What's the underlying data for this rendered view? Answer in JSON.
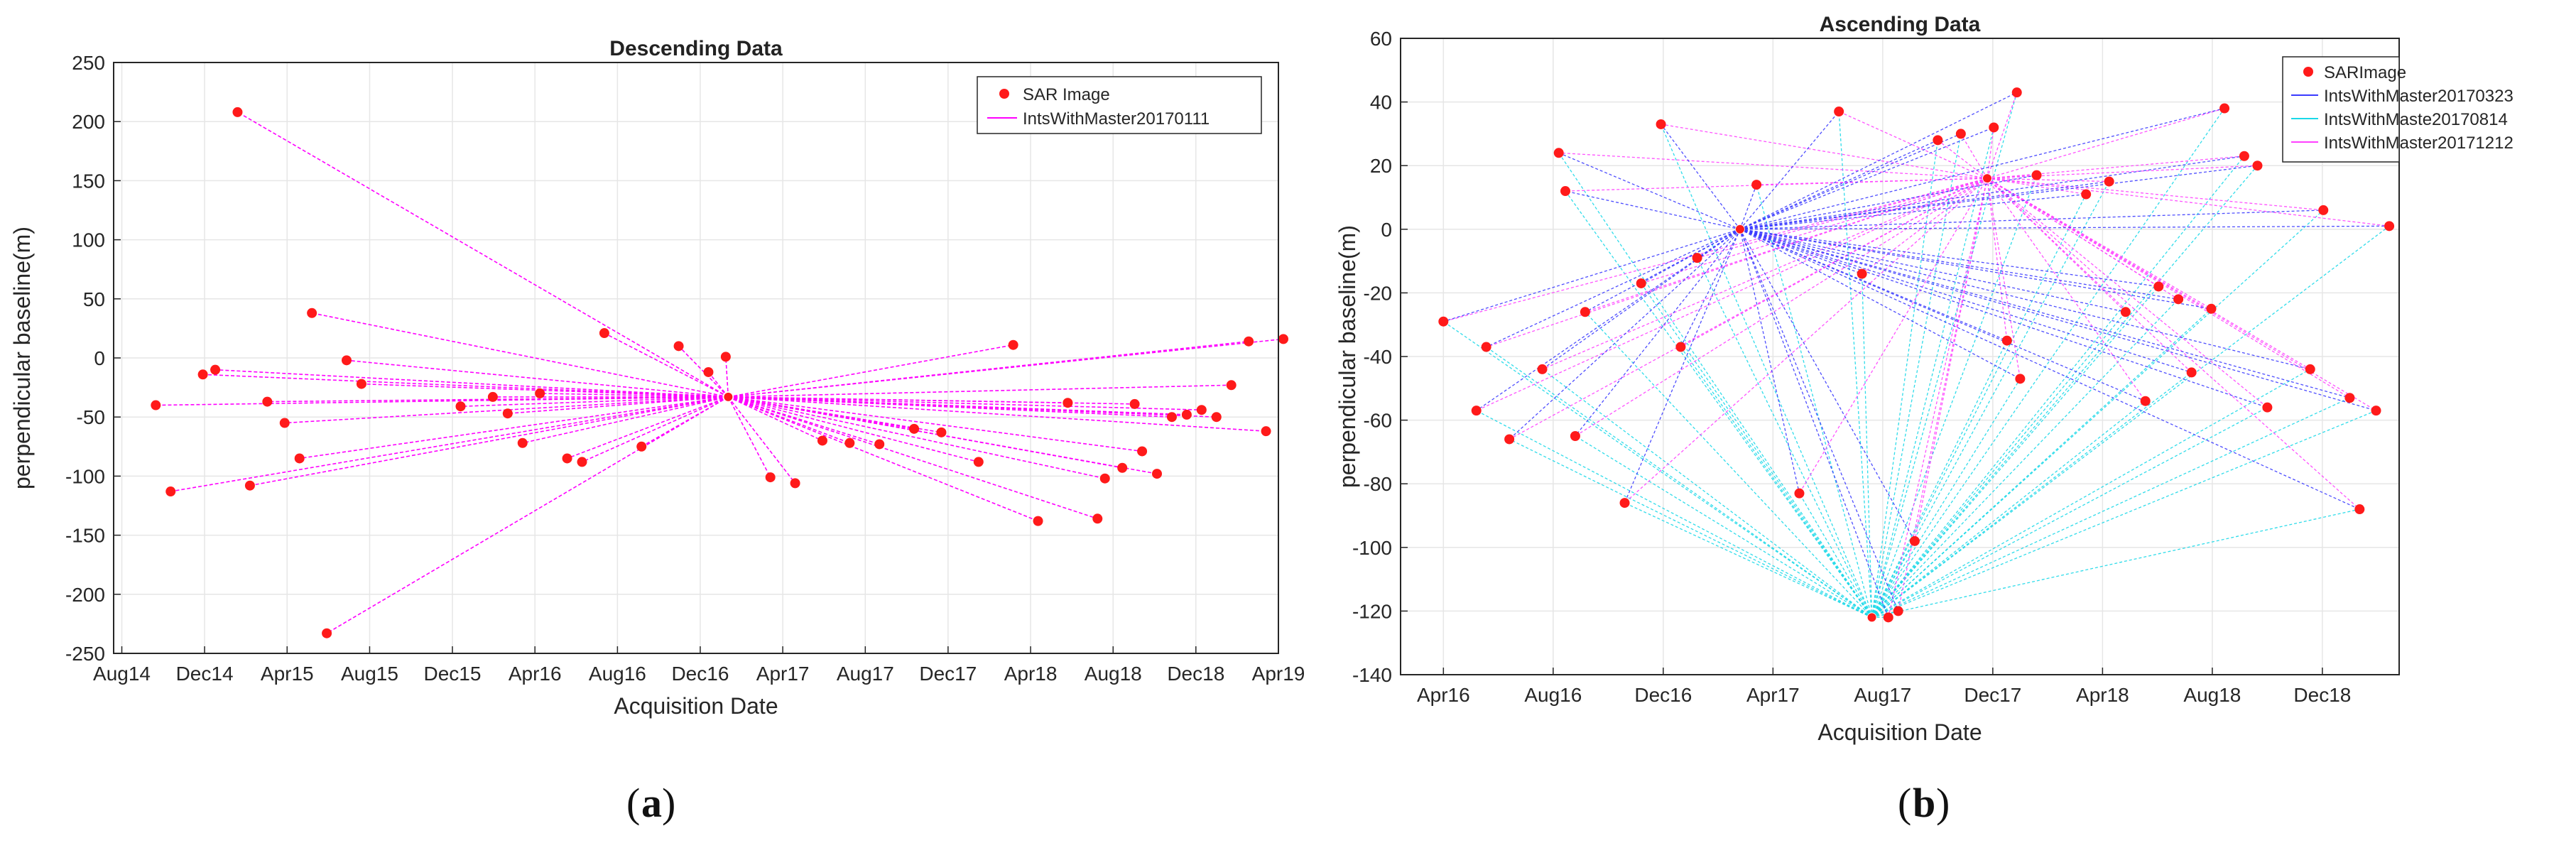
{
  "captions": {
    "a": "a",
    "b": "b"
  },
  "colors": {
    "marker": "#ff1a1a",
    "magenta": "#ff00ff",
    "blue": "#3b3bff",
    "cyan": "#1ad8e8",
    "pink": "#ff40ff"
  },
  "chart_data": [
    {
      "type": "line",
      "title": "Descending Data",
      "xlabel": "Acquisition Date",
      "ylabel": "perpendicular baseline(m)",
      "xlim": [
        2014.55,
        2019.25
      ],
      "ylim": [
        -250,
        250
      ],
      "x_ticks": [
        {
          "label": "Aug14",
          "t": 2014.583
        },
        {
          "label": "Dec14",
          "t": 2014.917
        },
        {
          "label": "Apr15",
          "t": 2015.25
        },
        {
          "label": "Aug15",
          "t": 2015.583
        },
        {
          "label": "Dec15",
          "t": 2015.917
        },
        {
          "label": "Apr16",
          "t": 2016.25
        },
        {
          "label": "Aug16",
          "t": 2016.583
        },
        {
          "label": "Dec16",
          "t": 2016.917
        },
        {
          "label": "Apr17",
          "t": 2017.25
        },
        {
          "label": "Aug17",
          "t": 2017.583
        },
        {
          "label": "Dec17",
          "t": 2017.917
        },
        {
          "label": "Apr18",
          "t": 2018.25
        },
        {
          "label": "Aug18",
          "t": 2018.583
        },
        {
          "label": "Dec18",
          "t": 2018.917
        },
        {
          "label": "Apr19",
          "t": 2019.25
        }
      ],
      "y_ticks": [
        250,
        200,
        150,
        100,
        50,
        0,
        -50,
        -100,
        -150,
        -200,
        -250
      ],
      "legend": {
        "position": "top-right",
        "entries": [
          "SAR Image",
          "IntsWithMaster20170111"
        ]
      },
      "series": [
        {
          "name": "IntsWithMaster20170111",
          "master": [
            2017.03,
            -33
          ],
          "points": [
            [
              2014.72,
              -40
            ],
            [
              2014.78,
              -113
            ],
            [
              2014.91,
              -14
            ],
            [
              2014.96,
              -10
            ],
            [
              2015.05,
              208
            ],
            [
              2015.1,
              -108
            ],
            [
              2015.17,
              -37
            ],
            [
              2015.24,
              -55
            ],
            [
              2015.3,
              -85
            ],
            [
              2015.35,
              38
            ],
            [
              2015.41,
              -233
            ],
            [
              2015.49,
              -2
            ],
            [
              2015.55,
              -22
            ],
            [
              2015.95,
              -41
            ],
            [
              2016.08,
              -33
            ],
            [
              2016.14,
              -47
            ],
            [
              2016.2,
              -72
            ],
            [
              2016.27,
              -30
            ],
            [
              2016.38,
              -85
            ],
            [
              2016.44,
              -88
            ],
            [
              2016.53,
              21
            ],
            [
              2016.68,
              -75
            ],
            [
              2016.83,
              10
            ],
            [
              2016.95,
              -12
            ],
            [
              2017.02,
              1
            ],
            [
              2017.2,
              -101
            ],
            [
              2017.3,
              -106
            ],
            [
              2017.41,
              -70
            ],
            [
              2017.52,
              -72
            ],
            [
              2017.64,
              -73
            ],
            [
              2017.78,
              -60
            ],
            [
              2017.89,
              -63
            ],
            [
              2018.04,
              -88
            ],
            [
              2018.18,
              11
            ],
            [
              2018.28,
              -138
            ],
            [
              2018.4,
              -38
            ],
            [
              2018.52,
              -136
            ],
            [
              2018.55,
              -102
            ],
            [
              2018.62,
              -93
            ],
            [
              2018.67,
              -39
            ],
            [
              2018.7,
              -79
            ],
            [
              2018.76,
              -98
            ],
            [
              2018.82,
              -50
            ],
            [
              2018.88,
              -48
            ],
            [
              2018.94,
              -44
            ],
            [
              2019.0,
              -50
            ],
            [
              2019.06,
              -23
            ],
            [
              2019.13,
              14
            ],
            [
              2019.2,
              -62
            ],
            [
              2019.27,
              16
            ]
          ]
        }
      ]
    },
    {
      "type": "line",
      "title": "Ascending Data",
      "xlabel": "Acquisition Date",
      "ylabel": "perpendicular baseline(m)",
      "xlim": [
        2016.12,
        2019.15
      ],
      "ylim": [
        -140,
        60
      ],
      "x_ticks": [
        {
          "label": "Apr16",
          "t": 2016.25
        },
        {
          "label": "Aug16",
          "t": 2016.583
        },
        {
          "label": "Dec16",
          "t": 2016.917
        },
        {
          "label": "Apr17",
          "t": 2017.25
        },
        {
          "label": "Aug17",
          "t": 2017.583
        },
        {
          "label": "Dec17",
          "t": 2017.917
        },
        {
          "label": "Apr18",
          "t": 2018.25
        },
        {
          "label": "Aug18",
          "t": 2018.583
        },
        {
          "label": "Dec18",
          "t": 2018.917
        }
      ],
      "y_ticks": [
        60,
        40,
        20,
        0,
        -20,
        -40,
        -60,
        -80,
        -100,
        -120,
        -140
      ],
      "legend": {
        "position": "top-right",
        "entries": [
          "SARImage",
          "IntsWithMaster20170323",
          "IntsWithMaste20170814",
          "IntsWithMaster20171212"
        ]
      },
      "masters": {
        "IntsWithMaster20170323": [
          2017.15,
          0
        ],
        "IntsWithMaste20170814": [
          2017.55,
          -122
        ],
        "IntsWithMaster20171212": [
          2017.9,
          16
        ]
      },
      "points": [
        [
          2016.25,
          -29
        ],
        [
          2016.35,
          -57
        ],
        [
          2016.38,
          -37
        ],
        [
          2016.45,
          -66
        ],
        [
          2016.55,
          -44
        ],
        [
          2016.6,
          24
        ],
        [
          2016.62,
          12
        ],
        [
          2016.65,
          -65
        ],
        [
          2016.68,
          -26
        ],
        [
          2016.8,
          -86
        ],
        [
          2016.85,
          -17
        ],
        [
          2016.91,
          33
        ],
        [
          2016.97,
          -37
        ],
        [
          2017.02,
          -9
        ],
        [
          2017.2,
          14
        ],
        [
          2017.33,
          -83
        ],
        [
          2017.45,
          37
        ],
        [
          2017.52,
          -14
        ],
        [
          2017.6,
          -122
        ],
        [
          2017.63,
          -120
        ],
        [
          2017.68,
          -98
        ],
        [
          2017.75,
          28
        ],
        [
          2017.82,
          30
        ],
        [
          2017.92,
          32
        ],
        [
          2017.96,
          -35
        ],
        [
          2017.99,
          43
        ],
        [
          2018.0,
          -47
        ],
        [
          2018.05,
          17
        ],
        [
          2018.2,
          11
        ],
        [
          2018.27,
          15
        ],
        [
          2018.32,
          -26
        ],
        [
          2018.38,
          -54
        ],
        [
          2018.42,
          -18
        ],
        [
          2018.48,
          -22
        ],
        [
          2018.52,
          -45
        ],
        [
          2018.58,
          -25
        ],
        [
          2018.62,
          38
        ],
        [
          2018.68,
          23
        ],
        [
          2018.72,
          20
        ],
        [
          2018.75,
          -56
        ],
        [
          2018.88,
          -44
        ],
        [
          2018.92,
          6
        ],
        [
          2019.0,
          -53
        ],
        [
          2019.03,
          -88
        ],
        [
          2019.08,
          -57
        ],
        [
          2019.12,
          1
        ]
      ]
    }
  ]
}
